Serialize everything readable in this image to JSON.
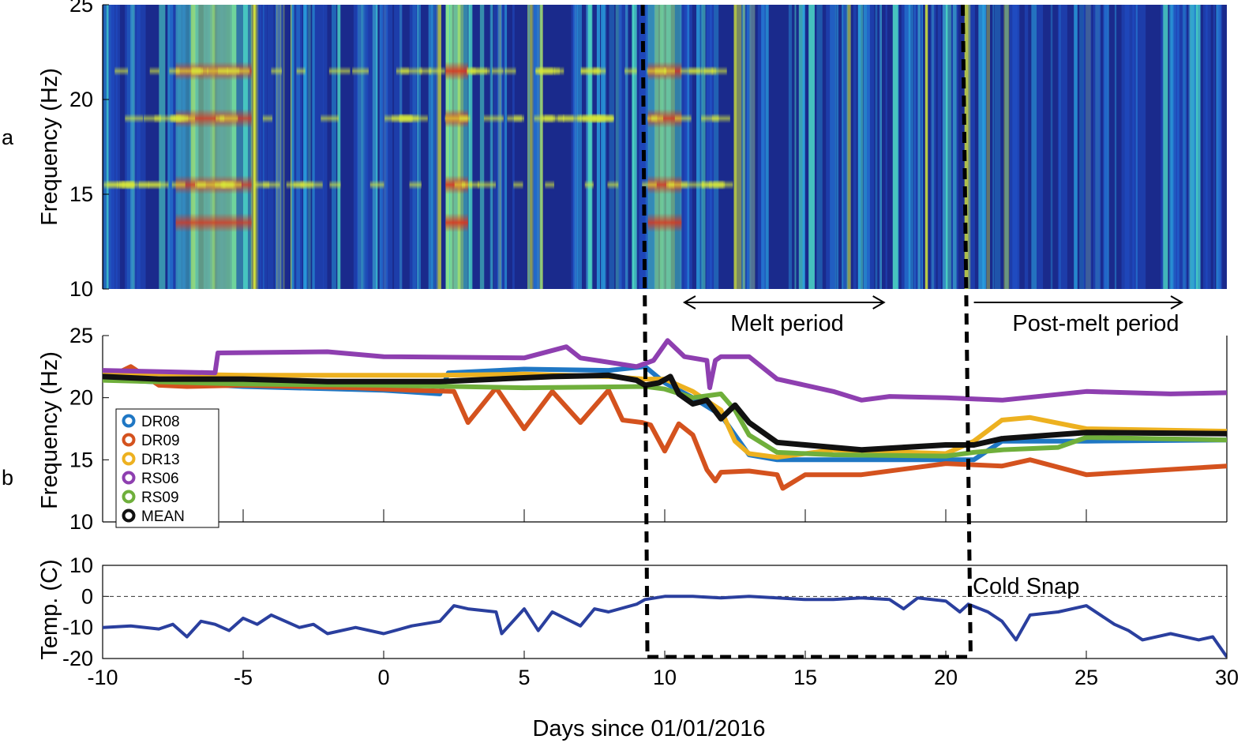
{
  "xlabel": "Days since 01/01/2016",
  "x_ticks": [
    -10,
    -5,
    0,
    5,
    10,
    15,
    20,
    25,
    30
  ],
  "x_range": [
    -10,
    30
  ],
  "event_lines_x": [
    9.3,
    20.8
  ],
  "panels": {
    "a": {
      "label": "a",
      "ylabel": "Frequency (Hz)"
    },
    "b": {
      "label": "b",
      "ylabel": "Frequency (Hz)"
    },
    "c": {
      "ylabel": "Temp. (C)"
    }
  },
  "annotations": {
    "melt": {
      "text": "Melt period",
      "x_start": 10.7,
      "x_end": 17.8
    },
    "post_melt": {
      "text": "Post-melt period",
      "x_start": 21.0,
      "x_end": 28.4
    },
    "cold_snap": {
      "text": "Cold Snap",
      "x": 21.2
    }
  },
  "chart_data": [
    {
      "type": "heatmap",
      "panel": "a",
      "ylabel": "Frequency (Hz)",
      "xlim": [
        -10,
        30
      ],
      "ylim": [
        10,
        25
      ],
      "yticks": [
        10,
        15,
        20,
        25
      ],
      "colormap": [
        "#1a2a8c",
        "#1f4fc8",
        "#2aa0e0",
        "#4fe0c8",
        "#d8e838",
        "#f0a020",
        "#e03018",
        "#9a1010"
      ],
      "spectral_bands_hz": [
        21.5,
        19.0,
        15.5,
        13.5
      ],
      "high_energy_intervals": [
        {
          "x": [
            -7.4,
            -4.7
          ],
          "intensity": 0.8
        },
        {
          "x": [
            2.2,
            3.0
          ],
          "intensity": 0.9
        },
        {
          "x": [
            9.4,
            10.6
          ],
          "intensity": 0.85
        }
      ]
    },
    {
      "type": "line",
      "panel": "b",
      "ylabel": "Frequency (Hz)",
      "xlim": [
        -10,
        30
      ],
      "ylim": [
        10,
        25
      ],
      "yticks": [
        10,
        15,
        20,
        25
      ],
      "legend_position": "left",
      "series": [
        {
          "name": "DR08",
          "color": "#1f77c4",
          "x": [
            -10,
            -5,
            0,
            2,
            2.3,
            5,
            8,
            9.3,
            10,
            11,
            12,
            13,
            14,
            16,
            20,
            21,
            22,
            25,
            30
          ],
          "y": [
            21.5,
            20.9,
            20.6,
            20.3,
            22,
            22.3,
            22.2,
            22.5,
            21.2,
            20,
            18.6,
            15.4,
            15,
            15,
            15,
            15,
            16.5,
            16.5,
            16.6
          ]
        },
        {
          "name": "DR09",
          "color": "#d4521e",
          "x": [
            -10,
            -9,
            -8,
            -7,
            -5,
            -3,
            -1,
            1,
            2.5,
            3,
            4,
            5,
            6,
            7,
            8,
            8.5,
            9.2,
            9.5,
            10,
            10.5,
            11,
            11.5,
            11.8,
            12,
            13,
            14,
            14.2,
            15,
            17,
            20,
            22,
            23,
            25,
            30
          ],
          "y": [
            21.4,
            22.5,
            21,
            20.9,
            21,
            20.9,
            20.8,
            20.6,
            20.5,
            18,
            20.8,
            17.5,
            20.5,
            18,
            20.6,
            18.2,
            18,
            17.8,
            15.7,
            17.9,
            17,
            14.2,
            13.3,
            14,
            14.1,
            13.8,
            12.7,
            13.8,
            13.8,
            14.7,
            14.5,
            15,
            13.8,
            14.5
          ]
        },
        {
          "name": "DR13",
          "color": "#edb120",
          "x": [
            -10,
            -5,
            0,
            2,
            5,
            8,
            9.3,
            10,
            11,
            12,
            12.5,
            13,
            14,
            16,
            20,
            21,
            22,
            23,
            25,
            30
          ],
          "y": [
            22,
            21.8,
            21.8,
            21.8,
            21.9,
            21.7,
            21.5,
            21.5,
            20.5,
            19,
            16.5,
            15.5,
            15.2,
            15.8,
            15.5,
            16.5,
            18.2,
            18.4,
            17.5,
            17.3
          ]
        },
        {
          "name": "RS06",
          "color": "#8e3fb0",
          "x": [
            -10,
            -6,
            -5.9,
            -2,
            0,
            5,
            6.5,
            7,
            9,
            9.6,
            10.1,
            10.7,
            11.5,
            11.6,
            11.8,
            12,
            13,
            14,
            15,
            16,
            17,
            18,
            20,
            22,
            25,
            28,
            30
          ],
          "y": [
            22.2,
            22,
            23.6,
            23.7,
            23.3,
            23.2,
            24.1,
            23.2,
            22.5,
            23,
            24.6,
            23.3,
            23,
            20.8,
            23,
            23.3,
            23.3,
            21.5,
            21,
            20.5,
            19.8,
            20.1,
            20,
            19.8,
            20.5,
            20.3,
            20.4
          ]
        },
        {
          "name": "RS09",
          "color": "#6faf3b",
          "x": [
            -10,
            -5,
            0,
            5,
            9.3,
            10,
            11,
            12,
            12.5,
            13,
            14,
            16,
            20,
            21,
            22,
            24,
            25,
            30
          ],
          "y": [
            21.4,
            21.1,
            21,
            20.8,
            20.9,
            20.7,
            20,
            20.3,
            19,
            17,
            15.6,
            15.4,
            15.3,
            15.6,
            15.8,
            16,
            16.8,
            16.6
          ]
        },
        {
          "name": "MEAN",
          "color": "#111111",
          "x": [
            -10,
            -8,
            -5,
            -2,
            0,
            2,
            4,
            6,
            8,
            9,
            9.3,
            9.8,
            10.2,
            10.5,
            11,
            11.5,
            12,
            12.5,
            13,
            14,
            15,
            17,
            20,
            21,
            22,
            25,
            30
          ],
          "y": [
            21.7,
            21.5,
            21.5,
            21.3,
            21.3,
            21.3,
            21.5,
            21.7,
            21.8,
            21.4,
            21,
            21.2,
            21.7,
            20.3,
            19.5,
            19.8,
            18.3,
            19.4,
            18,
            16.4,
            16.2,
            15.8,
            16.2,
            16.2,
            16.7,
            17.2,
            17.1
          ]
        }
      ]
    },
    {
      "type": "line",
      "panel": "c",
      "ylabel": "Temp. (C)",
      "xlim": [
        -10,
        30
      ],
      "ylim": [
        -20,
        10
      ],
      "yticks": [
        -20,
        -10,
        0,
        10
      ],
      "reference_line_y": 0,
      "series": [
        {
          "color": "#2a3f9e",
          "x": [
            -10,
            -9,
            -8,
            -7.5,
            -7,
            -6.5,
            -6,
            -5.5,
            -5,
            -4.5,
            -4,
            -3,
            -2.5,
            -2,
            -1,
            0,
            1,
            2,
            2.5,
            3,
            4,
            4.2,
            5,
            5.5,
            6,
            7,
            7.5,
            8,
            9,
            9.3,
            10,
            11,
            12,
            13,
            14,
            15,
            16,
            17,
            18,
            18.5,
            19,
            20,
            20.5,
            20.8,
            21.5,
            22,
            22.5,
            23,
            24,
            25,
            26,
            26.5,
            27,
            28,
            29,
            29.5,
            30
          ],
          "y": [
            -10,
            -9.5,
            -10.5,
            -9,
            -13,
            -8,
            -9,
            -11,
            -7,
            -9,
            -6,
            -10,
            -9,
            -12,
            -10,
            -12,
            -9.5,
            -8,
            -3,
            -4,
            -5,
            -12,
            -4,
            -11,
            -5,
            -9.5,
            -4,
            -5,
            -2.5,
            -1,
            0,
            0,
            -0.5,
            0,
            -0.5,
            -1,
            -1,
            -0.5,
            -1,
            -4,
            -0.5,
            -1.5,
            -5,
            -2.5,
            -5,
            -8,
            -14,
            -6,
            -5,
            -3,
            -9,
            -11,
            -14,
            -12,
            -14,
            -13,
            -19.5
          ]
        }
      ]
    }
  ]
}
